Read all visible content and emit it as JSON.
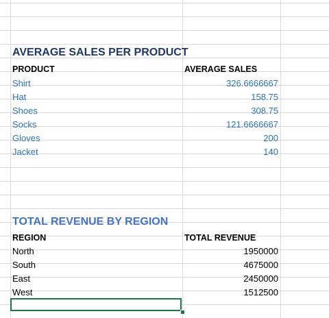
{
  "sheet": {
    "avg_table": {
      "title": "AVERAGE SALES PER PRODUCT",
      "header_col1": "PRODUCT",
      "header_col2": "AVERAGE SALES",
      "rows": [
        {
          "product": "Shirt",
          "value": "326.6666667"
        },
        {
          "product": "Hat",
          "value": "158.75"
        },
        {
          "product": "Shoes",
          "value": "308.75"
        },
        {
          "product": "Socks",
          "value": "121.6666667"
        },
        {
          "product": "Gloves",
          "value": "200"
        },
        {
          "product": "Jacket",
          "value": "140"
        }
      ]
    },
    "rev_table": {
      "title": "TOTAL REVENUE BY REGION",
      "header_col1": "REGION",
      "header_col2": "TOTAL REVENUE",
      "rows": [
        {
          "region": "North",
          "value": "1950000"
        },
        {
          "region": "South",
          "value": "4675000"
        },
        {
          "region": "East",
          "value": "2450000"
        },
        {
          "region": "West",
          "value": "1512500"
        }
      ]
    },
    "colors": {
      "title_avg": "#1f3864",
      "title_rev": "#4472c4",
      "product_text": "#2e75b6",
      "gridline": "#d9d9d9",
      "selection": "#217346"
    }
  }
}
